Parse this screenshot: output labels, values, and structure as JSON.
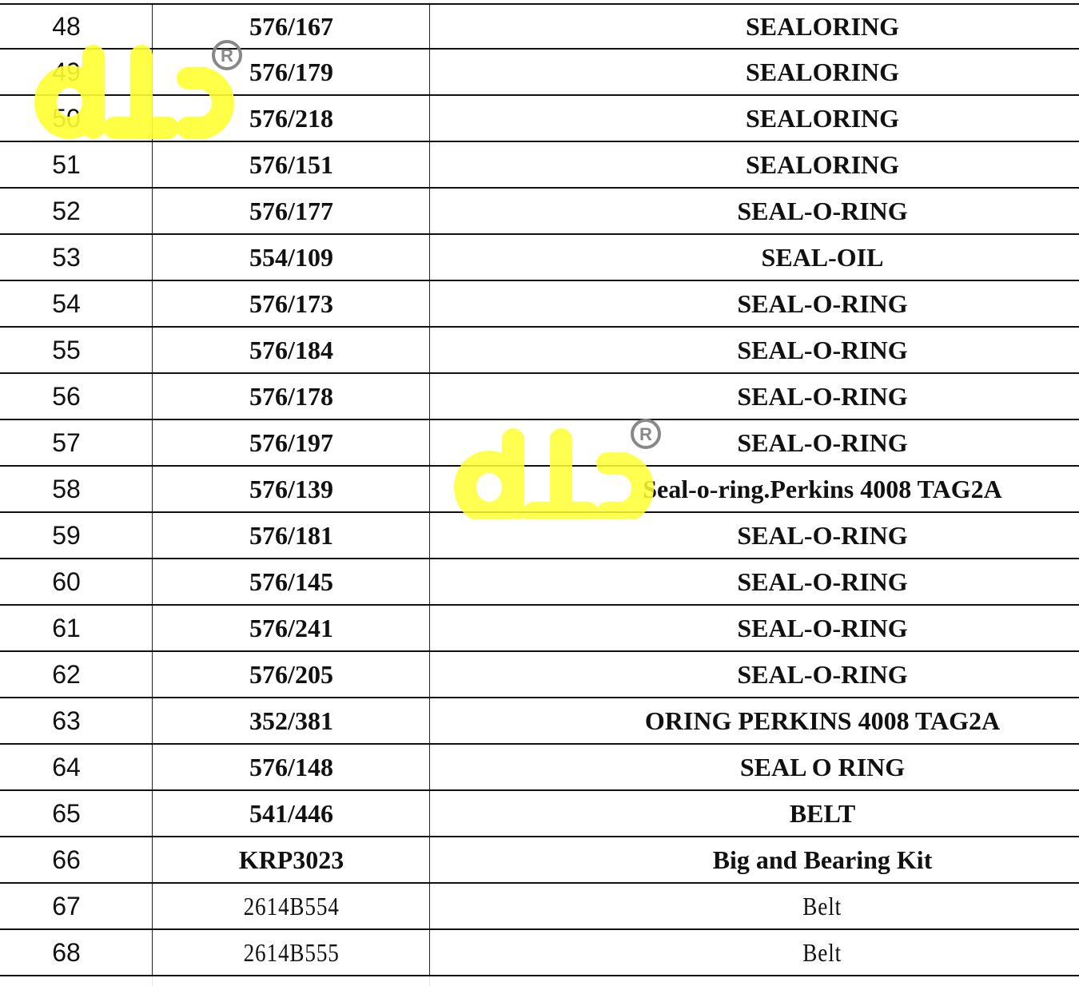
{
  "table": {
    "rows": [
      {
        "no": "48",
        "code": "576/167",
        "desc": "SEALORING"
      },
      {
        "no": "49",
        "code": "576/179",
        "desc": "SEALORING"
      },
      {
        "no": "50",
        "code": "576/218",
        "desc": "SEALORING"
      },
      {
        "no": "51",
        "code": "576/151",
        "desc": "SEALORING"
      },
      {
        "no": "52",
        "code": "576/177",
        "desc": "SEAL-O-RING"
      },
      {
        "no": "53",
        "code": "554/109",
        "desc": "SEAL-OIL"
      },
      {
        "no": "54",
        "code": "576/173",
        "desc": "SEAL-O-RING"
      },
      {
        "no": "55",
        "code": "576/184",
        "desc": "SEAL-O-RING"
      },
      {
        "no": "56",
        "code": "576/178",
        "desc": "SEAL-O-RING"
      },
      {
        "no": "57",
        "code": "576/197",
        "desc": "SEAL-O-RING"
      },
      {
        "no": "58",
        "code": "576/139",
        "desc": "Seal-o-ring.Perkins 4008 TAG2A"
      },
      {
        "no": "59",
        "code": "576/181",
        "desc": "SEAL-O-RING"
      },
      {
        "no": "60",
        "code": "576/145",
        "desc": "SEAL-O-RING"
      },
      {
        "no": "61",
        "code": "576/241",
        "desc": "SEAL-O-RING"
      },
      {
        "no": "62",
        "code": "576/205",
        "desc": "SEAL-O-RING"
      },
      {
        "no": "63",
        "code": "352/381",
        "desc": "ORING PERKINS 4008 TAG2A"
      },
      {
        "no": "64",
        "code": "576/148",
        "desc": "SEAL O RING"
      },
      {
        "no": "65",
        "code": "541/446",
        "desc": "BELT"
      },
      {
        "no": "66",
        "code": "KRP3023",
        "desc": "Big and Bearing Kit"
      },
      {
        "no": "67",
        "code": "2614B554",
        "desc": "Belt"
      },
      {
        "no": "68",
        "code": "2614B555",
        "desc": "Belt"
      }
    ]
  },
  "watermark": {
    "logo": "dLc",
    "mark": "®",
    "color": "#ffff33",
    "mark_color": "#888888"
  }
}
